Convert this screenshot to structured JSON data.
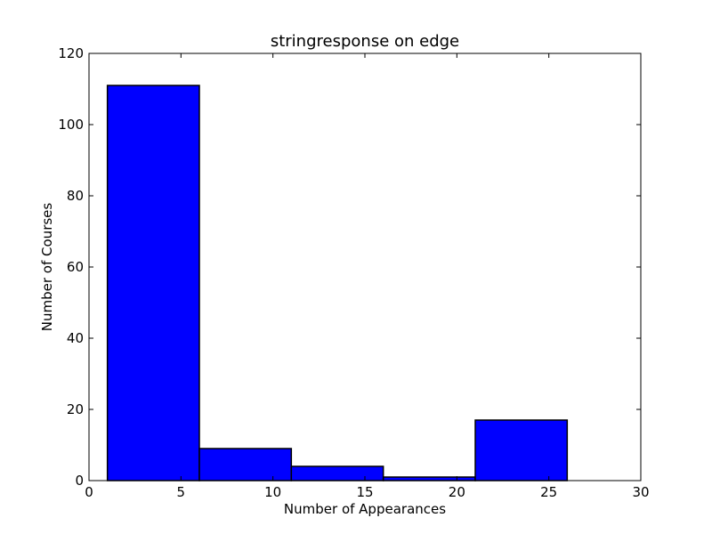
{
  "chart_data": {
    "type": "bar",
    "title": "stringresponse on edge",
    "xlabel": "Number of Appearances",
    "ylabel": "Number of Courses",
    "xlim": [
      0,
      30
    ],
    "ylim": [
      0,
      120
    ],
    "xticks": [
      0,
      5,
      10,
      15,
      20,
      25,
      30
    ],
    "yticks": [
      0,
      20,
      40,
      60,
      80,
      100,
      120
    ],
    "bins": [
      {
        "x0": 1,
        "x1": 6,
        "value": 111
      },
      {
        "x0": 6,
        "x1": 11,
        "value": 9
      },
      {
        "x0": 11,
        "x1": 16,
        "value": 4
      },
      {
        "x0": 16,
        "x1": 21,
        "value": 1
      },
      {
        "x0": 21,
        "x1": 26,
        "value": 17
      }
    ],
    "bar_color": "#0000ff",
    "edge_color": "#000000",
    "grid": false
  }
}
